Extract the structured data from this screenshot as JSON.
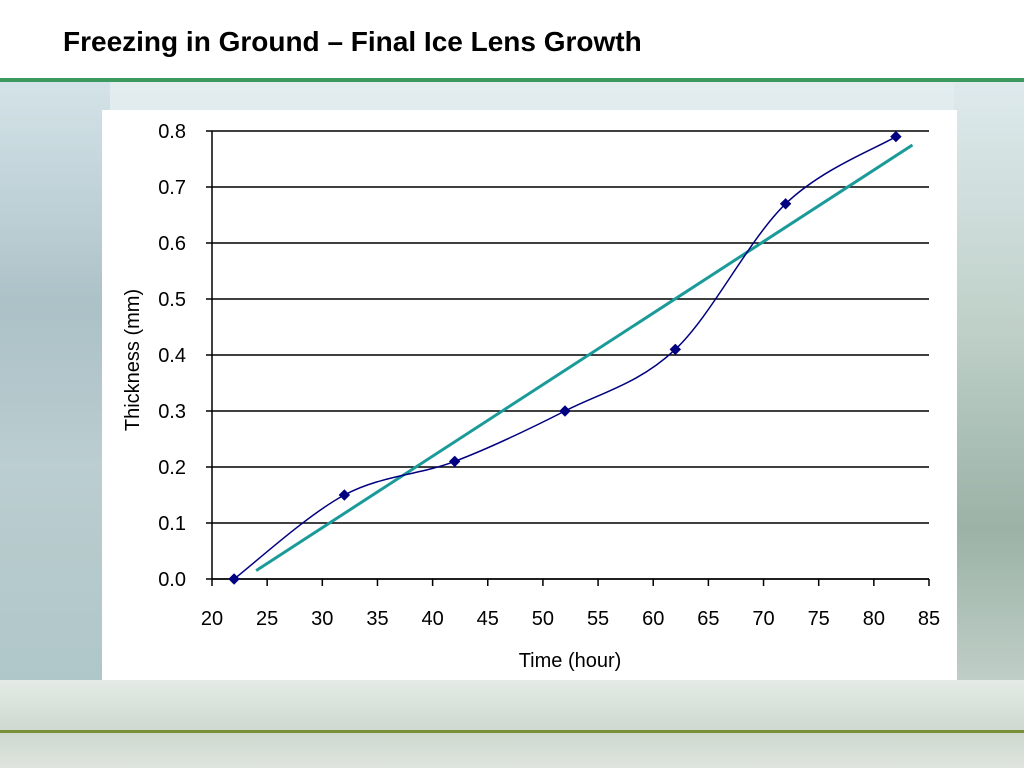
{
  "slide": {
    "title": "Freezing in Ground – Final Ice Lens Growth"
  },
  "colors": {
    "data_series": "#000080",
    "trendline": "#1a9b9a",
    "title_rule": "#3d9a5f",
    "footer_rule": "#7a8f3a"
  },
  "chart_data": {
    "type": "line",
    "xlabel": "Time (hour)",
    "ylabel": "Thickness (mm)",
    "xlim": [
      20,
      85
    ],
    "ylim": [
      0.0,
      0.8
    ],
    "x_ticks": [
      20,
      25,
      30,
      35,
      40,
      45,
      50,
      55,
      60,
      65,
      70,
      75,
      80,
      85
    ],
    "y_ticks": [
      "0.0",
      "0.1",
      "0.2",
      "0.3",
      "0.4",
      "0.5",
      "0.6",
      "0.7",
      "0.8"
    ],
    "grid": "horizontal",
    "series": [
      {
        "style": "smooth line with diamond markers",
        "x": [
          22,
          32,
          42,
          52,
          62,
          72,
          82
        ],
        "y": [
          0.0,
          0.15,
          0.21,
          0.3,
          0.41,
          0.67,
          0.79
        ]
      }
    ],
    "trendline": {
      "type": "linear",
      "x": [
        24,
        83.5
      ],
      "y": [
        0.015,
        0.775
      ]
    }
  }
}
